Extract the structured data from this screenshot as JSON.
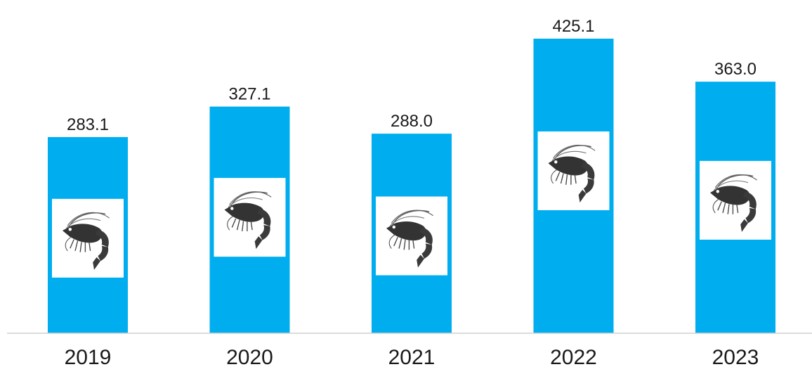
{
  "chart_data": {
    "type": "bar",
    "title": "",
    "xlabel": "",
    "ylabel": "",
    "categories": [
      "2019",
      "2020",
      "2021",
      "2022",
      "2023"
    ],
    "values": [
      283.1,
      327.1,
      288.0,
      425.1,
      363.0
    ],
    "value_labels": [
      "283.1",
      "327.1",
      "288.0",
      "425.1",
      "363.0"
    ],
    "ylim": [
      0,
      425.1
    ],
    "grid": false,
    "legend": "none",
    "bar_color": "#00aeef",
    "bar_icon": "shrimp-icon"
  }
}
